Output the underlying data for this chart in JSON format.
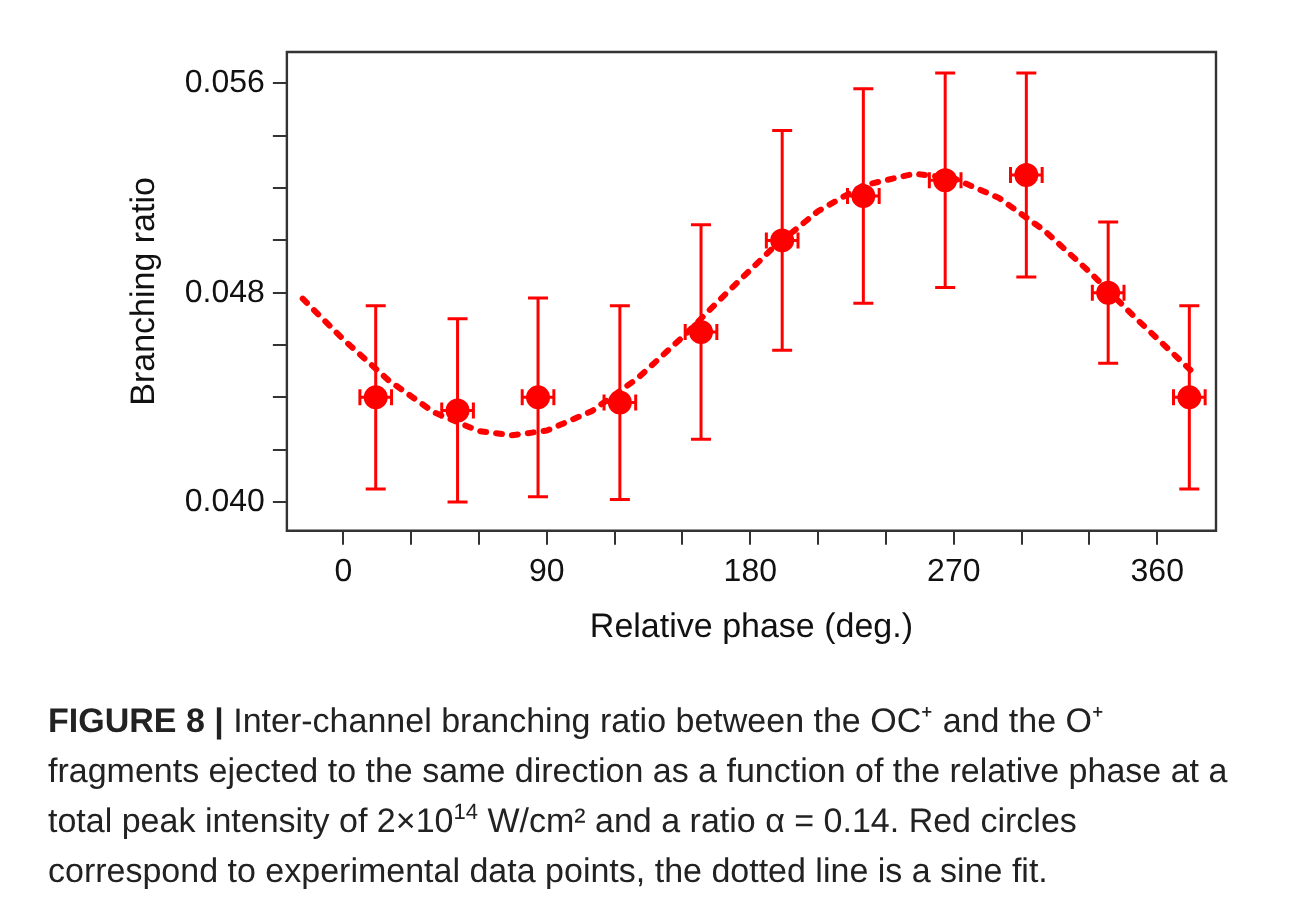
{
  "chart_data": {
    "type": "scatter",
    "xlabel": "Relative phase (deg.)",
    "ylabel": "Branching ratio",
    "annotations": [
      "FIGURE 8 |",
      "Inter-channel branching ratio between the OC⁺ and the O⁺ fragments ejected to the same direction as a function of the relative phase at a total peak intensity of 2×10$^{14}$ W/cm² and a ratio α = 0.14. Red circles correspond to experimental data points, the dotted line is a sine fit."
    ],
    "series": [
      {
        "color": "#ff0000",
        "marker": "circle",
        "x": [
          14.3,
          50.5,
          86.1,
          122.3,
          158.2,
          194.1,
          230,
          266.2,
          302.1,
          338.3,
          374.2
        ],
        "values": [
          0.044,
          0.0435,
          0.044,
          0.0438,
          0.0465,
          0.05,
          0.0517,
          0.0523,
          0.0525,
          0.048,
          0.044
        ],
        "errors": [
          0.0035,
          0.0035,
          0.0038,
          0.0037,
          0.0041,
          0.0042,
          0.0041,
          0.0041,
          0.0039,
          0.0027,
          0.0035
        ],
        "xerrors": [
          7,
          7,
          7,
          7,
          7,
          7,
          7,
          7,
          7,
          7,
          7
        ]
      },
      {
        "type": "line",
        "color": "#ff0000",
        "marker": "none",
        "line_style": "dotted",
        "x": [
          -18,
          0,
          20,
          40,
          60,
          74.5,
          90,
          110,
          130,
          150,
          170,
          190,
          210,
          230,
          252.5,
          270,
          290,
          310,
          330,
          350,
          376
        ],
        "values": [
          0.04777,
          0.04621,
          0.04465,
          0.04343,
          0.04271,
          0.04255,
          0.04273,
          0.04348,
          0.04472,
          0.0463,
          0.04803,
          0.04971,
          0.05112,
          0.0521,
          0.05255,
          0.05237,
          0.05162,
          0.05038,
          0.0488,
          0.04707,
          0.04494
        ]
      }
    ],
    "xlim": [
      -25,
      386
    ],
    "ylim": [
      0.0389,
      0.0572
    ],
    "xticks": [
      0,
      {
        "value": 30,
        "label": null
      },
      {
        "value": 60,
        "label": null
      },
      90,
      {
        "value": 120,
        "label": null
      },
      {
        "value": 150,
        "label": null
      },
      180,
      {
        "value": 210,
        "label": null
      },
      {
        "value": 240,
        "label": null
      },
      270,
      {
        "value": 300,
        "label": null
      },
      {
        "value": 330,
        "label": null
      },
      360
    ],
    "yticks": [
      {
        "value": 0.04,
        "label": "0.040"
      },
      {
        "value": 0.042,
        "label": null
      },
      {
        "value": 0.044,
        "label": null
      },
      {
        "value": 0.046,
        "label": null
      },
      {
        "value": 0.048,
        "label": "0.048"
      },
      {
        "value": 0.05,
        "label": null
      },
      {
        "value": 0.052,
        "label": null
      },
      {
        "value": 0.054,
        "label": null
      },
      {
        "value": 0.056,
        "label": "0.056"
      }
    ],
    "grid": false,
    "legend": false
  }
}
